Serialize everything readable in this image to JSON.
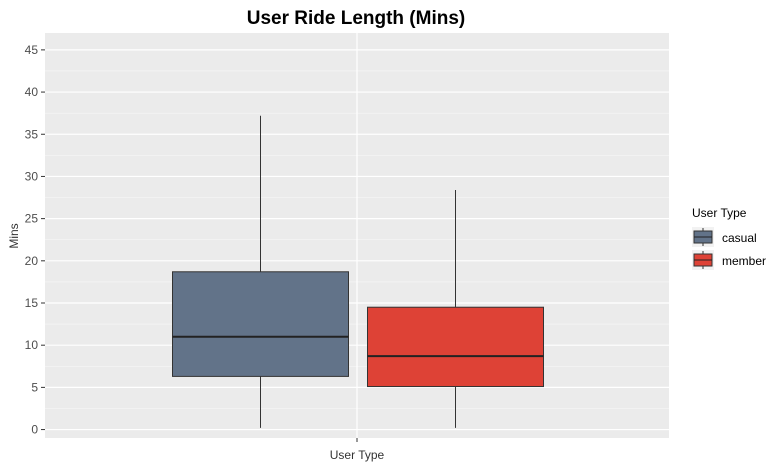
{
  "chart_data": {
    "type": "boxplot",
    "title": "User Ride Length (Mins)",
    "xlabel": "User Type",
    "ylabel": "Mins",
    "ylim": [
      -1,
      47
    ],
    "yticks": [
      0,
      5,
      10,
      15,
      20,
      25,
      30,
      35,
      40,
      45
    ],
    "grid": true,
    "legend": {
      "title": "User Type",
      "position": "right"
    },
    "series": [
      {
        "name": "casual",
        "color": "#627389",
        "min": 0.2,
        "q1": 6.3,
        "median": 11.0,
        "q3": 18.7,
        "max": 37.2
      },
      {
        "name": "member",
        "color": "#de4236",
        "min": 0.2,
        "q1": 5.1,
        "median": 8.7,
        "q3": 14.5,
        "max": 28.4
      }
    ]
  }
}
